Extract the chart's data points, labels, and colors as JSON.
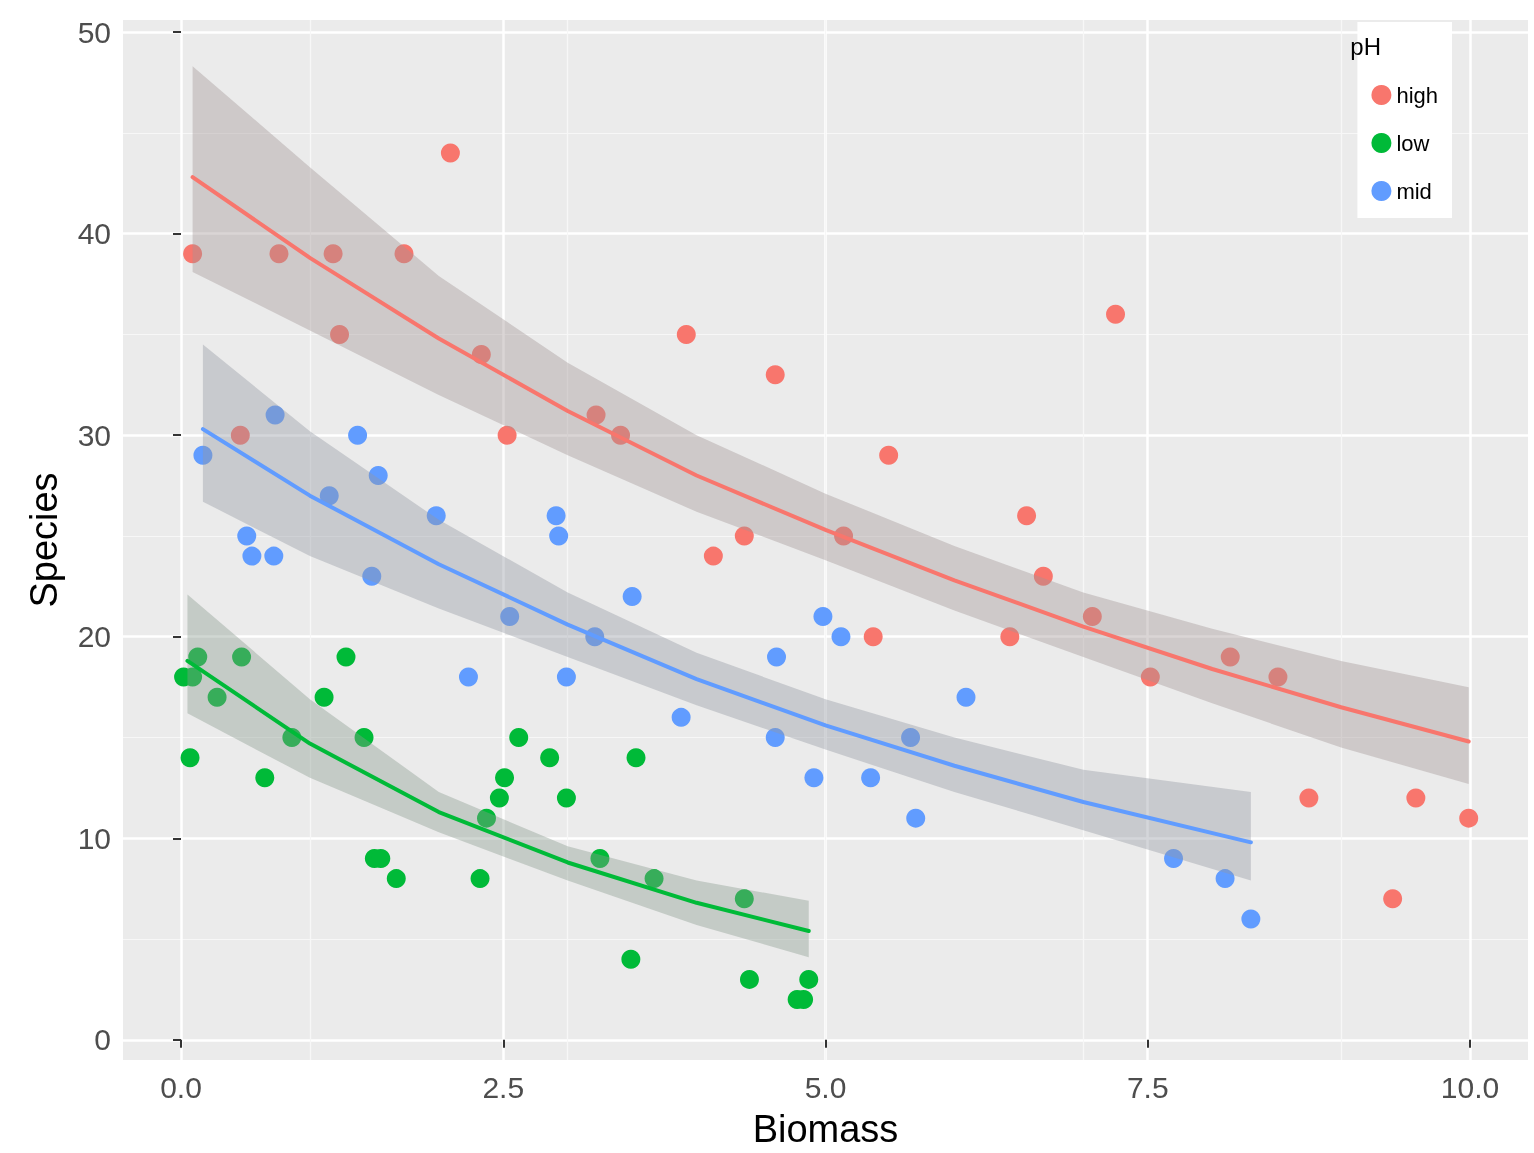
{
  "chart_data": {
    "type": "scatter",
    "xlabel": "Biomass",
    "ylabel": "Species",
    "legend_title": "pH",
    "legend": "top right",
    "grid": true,
    "marker": "circle",
    "xlim": [
      -0.45,
      10.45
    ],
    "xticks": [
      {
        "value": 0,
        "label": "0.0"
      },
      {
        "value": 2.5,
        "label": "2.5"
      },
      {
        "value": 5,
        "label": "5.0"
      },
      {
        "value": 7.5,
        "label": "7.5"
      },
      {
        "value": 10,
        "label": "10.0"
      }
    ],
    "ylim": [
      -1,
      50.6
    ],
    "yticks": [
      0,
      10,
      20,
      30,
      40,
      50
    ],
    "series": [
      {
        "name": "high",
        "color": "#f8766d",
        "x": [
          0.09,
          0.46,
          0.76,
          1.18,
          1.23,
          1.73,
          2.09,
          2.33,
          2.53,
          3.22,
          3.41,
          3.92,
          4.13,
          4.37,
          4.61,
          5.14,
          5.37,
          5.49,
          6.43,
          6.56,
          6.69,
          7.07,
          7.25,
          7.52,
          8.14,
          8.51,
          8.75,
          9.4,
          9.58,
          9.99
        ],
        "values": [
          39,
          30,
          39,
          39,
          35,
          39,
          44,
          34,
          30,
          31,
          30,
          35,
          24,
          25,
          33,
          25,
          20,
          29,
          20,
          26,
          23,
          21,
          36,
          18,
          19,
          18,
          12,
          7,
          12,
          11
        ]
      },
      {
        "name": "low",
        "color": "#00ba38",
        "x": [
          0.02,
          0.09,
          0.13,
          0.07,
          0.28,
          0.47,
          0.65,
          0.86,
          1.11,
          1.28,
          1.42,
          1.5,
          1.55,
          1.67,
          2.32,
          2.37,
          2.47,
          2.51,
          2.62,
          2.86,
          2.99,
          3.25,
          3.49,
          3.53,
          3.67,
          4.37,
          4.41,
          4.78,
          4.83,
          4.87
        ],
        "values": [
          18,
          18,
          19,
          14,
          17,
          19,
          13,
          15,
          17,
          19,
          15,
          9,
          9,
          8,
          8,
          11,
          12,
          13,
          15,
          14,
          12,
          9,
          4,
          14,
          8,
          7,
          3,
          2,
          2,
          3
        ]
      },
      {
        "name": "mid",
        "color": "#619cff",
        "x": [
          0.17,
          0.51,
          0.55,
          0.73,
          0.72,
          1.15,
          1.37,
          1.48,
          1.53,
          1.98,
          2.23,
          2.55,
          2.91,
          2.93,
          2.99,
          3.21,
          3.5,
          3.88,
          4.62,
          4.61,
          4.91,
          4.98,
          5.12,
          5.35,
          5.66,
          5.7,
          6.09,
          7.7,
          8.1,
          8.3
        ],
        "values": [
          29,
          25,
          24,
          31,
          24,
          27,
          30,
          23,
          28,
          26,
          18,
          21,
          26,
          25,
          18,
          20,
          22,
          16,
          19,
          15,
          13,
          21,
          20,
          13,
          15,
          11,
          17,
          9,
          8,
          6
        ]
      },
      {
        "type": "line",
        "marker": "none",
        "line_style": "solid",
        "color": "#f8766d",
        "x": [
          0.09,
          1,
          2,
          3,
          4,
          5,
          6,
          7,
          8,
          9,
          9.99
        ],
        "values": [
          42.8,
          38.8,
          34.8,
          31.2,
          28.0,
          25.3,
          22.8,
          20.5,
          18.4,
          16.5,
          14.8
        ],
        "upper": [
          48.3,
          43.3,
          37.9,
          33.6,
          30.0,
          27.1,
          24.5,
          22.2,
          20.4,
          18.8,
          17.5
        ],
        "lower": [
          38.1,
          35.2,
          32.0,
          29.0,
          26.2,
          23.8,
          21.3,
          19.0,
          16.7,
          14.5,
          12.7
        ]
      },
      {
        "type": "line",
        "marker": "none",
        "line_style": "solid",
        "color": "#00ba38",
        "x": [
          0.05,
          1,
          2,
          3,
          4,
          4.87
        ],
        "values": [
          18.8,
          14.7,
          11.3,
          8.8,
          6.8,
          5.4
        ],
        "upper": [
          22.1,
          16.9,
          12.3,
          9.6,
          7.9,
          6.9
        ],
        "lower": [
          16.2,
          13.0,
          10.3,
          7.9,
          5.7,
          4.1
        ]
      },
      {
        "type": "line",
        "marker": "none",
        "line_style": "solid",
        "color": "#619cff",
        "x": [
          0.17,
          1,
          2,
          3,
          4,
          5,
          6,
          7,
          8.3
        ],
        "values": [
          30.3,
          27.0,
          23.6,
          20.6,
          17.9,
          15.6,
          13.6,
          11.8,
          9.8
        ],
        "upper": [
          34.5,
          30.2,
          25.8,
          22.2,
          19.2,
          16.9,
          15.0,
          13.4,
          12.3
        ],
        "lower": [
          26.7,
          24.0,
          21.4,
          19.0,
          16.6,
          14.4,
          12.3,
          10.4,
          7.9
        ]
      }
    ]
  }
}
